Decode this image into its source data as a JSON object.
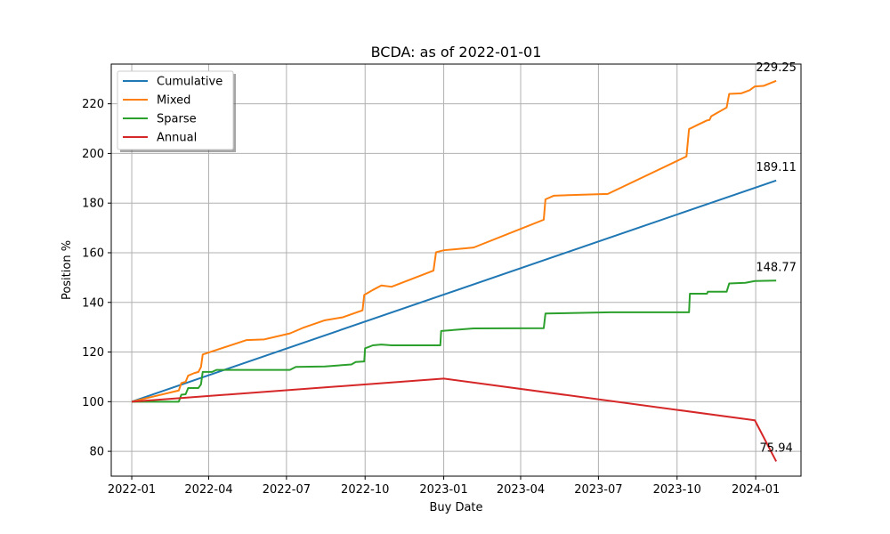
{
  "chart_data": {
    "type": "line",
    "title": "BCDA: as of 2022-01-01",
    "xlabel": "Buy Date",
    "ylabel": "Position %",
    "x_ticks": [
      "2022-01",
      "2022-04",
      "2022-07",
      "2022-10",
      "2023-01",
      "2023-04",
      "2023-07",
      "2023-10",
      "2024-01"
    ],
    "y_ticks": [
      80,
      100,
      120,
      140,
      160,
      180,
      200,
      220
    ],
    "xlim": [
      "2021-12-08",
      "2024-02-23"
    ],
    "ylim": [
      70,
      236
    ],
    "grid": true,
    "legend": "top-left",
    "series": [
      {
        "name": "Cumulative",
        "color": "#1f77b4",
        "points": [
          [
            "2022-01-01",
            100.0
          ],
          [
            "2024-01-25",
            189.11
          ]
        ],
        "end_label": "189.11"
      },
      {
        "name": "Mixed",
        "color": "#ff7f0e",
        "points": [
          [
            "2022-01-01",
            100.0
          ],
          [
            "2022-02-25",
            104.5
          ],
          [
            "2022-02-28",
            107.5
          ],
          [
            "2022-03-05",
            108.0
          ],
          [
            "2022-03-08",
            110.5
          ],
          [
            "2022-03-15",
            111.5
          ],
          [
            "2022-03-20",
            112.0
          ],
          [
            "2022-03-23",
            114.0
          ],
          [
            "2022-03-25",
            119.0
          ],
          [
            "2022-05-15",
            124.8
          ],
          [
            "2022-06-05",
            125.1
          ],
          [
            "2022-07-05",
            127.5
          ],
          [
            "2022-07-20",
            129.7
          ],
          [
            "2022-08-15",
            132.8
          ],
          [
            "2022-09-05",
            134.0
          ],
          [
            "2022-09-28",
            136.8
          ],
          [
            "2022-09-30",
            143.0
          ],
          [
            "2022-10-05",
            144.0
          ],
          [
            "2022-10-10",
            145.0
          ],
          [
            "2022-10-20",
            146.8
          ],
          [
            "2022-11-01",
            146.3
          ],
          [
            "2022-12-20",
            152.8
          ],
          [
            "2022-12-23",
            160.2
          ],
          [
            "2023-01-01",
            161.0
          ],
          [
            "2023-02-05",
            162.1
          ],
          [
            "2023-04-28",
            173.3
          ],
          [
            "2023-04-30",
            181.5
          ],
          [
            "2023-05-10",
            183.0
          ],
          [
            "2023-07-12",
            183.7
          ],
          [
            "2023-10-12",
            198.8
          ],
          [
            "2023-10-15",
            209.8
          ],
          [
            "2023-10-25",
            211.5
          ],
          [
            "2023-11-05",
            213.3
          ],
          [
            "2023-11-08",
            213.5
          ],
          [
            "2023-11-10",
            215.0
          ],
          [
            "2023-11-28",
            218.5
          ],
          [
            "2023-12-01",
            224.0
          ],
          [
            "2023-12-15",
            224.2
          ],
          [
            "2023-12-25",
            225.5
          ],
          [
            "2023-12-31",
            227.0
          ],
          [
            "2024-01-10",
            227.2
          ],
          [
            "2024-01-25",
            229.25
          ]
        ],
        "end_label": "229.25"
      },
      {
        "name": "Sparse",
        "color": "#2ca02c",
        "points": [
          [
            "2022-01-01",
            100.0
          ],
          [
            "2022-02-25",
            100.0
          ],
          [
            "2022-02-28",
            102.8
          ],
          [
            "2022-03-05",
            103.0
          ],
          [
            "2022-03-08",
            105.5
          ],
          [
            "2022-03-20",
            105.5
          ],
          [
            "2022-03-23",
            107.0
          ],
          [
            "2022-03-25",
            112.0
          ],
          [
            "2022-04-05",
            112.0
          ],
          [
            "2022-04-10",
            112.8
          ],
          [
            "2022-07-05",
            112.8
          ],
          [
            "2022-07-12",
            114.0
          ],
          [
            "2022-08-15",
            114.2
          ],
          [
            "2022-09-15",
            115.0
          ],
          [
            "2022-09-20",
            116.0
          ],
          [
            "2022-09-30",
            116.2
          ],
          [
            "2022-10-01",
            121.5
          ],
          [
            "2022-10-05",
            122.0
          ],
          [
            "2022-10-10",
            122.7
          ],
          [
            "2022-10-20",
            123.0
          ],
          [
            "2022-11-01",
            122.7
          ],
          [
            "2022-12-28",
            122.7
          ],
          [
            "2022-12-29",
            128.5
          ],
          [
            "2023-02-05",
            129.5
          ],
          [
            "2023-04-28",
            129.6
          ],
          [
            "2023-04-30",
            135.5
          ],
          [
            "2023-07-15",
            136.0
          ],
          [
            "2023-10-15",
            136.0
          ],
          [
            "2023-10-16",
            143.5
          ],
          [
            "2023-11-05",
            143.5
          ],
          [
            "2023-11-06",
            144.3
          ],
          [
            "2023-11-28",
            144.3
          ],
          [
            "2023-12-01",
            147.6
          ],
          [
            "2023-12-20",
            147.9
          ],
          [
            "2023-12-31",
            148.6
          ],
          [
            "2024-01-25",
            148.77
          ]
        ],
        "end_label": "148.77"
      },
      {
        "name": "Annual",
        "color": "#d62728",
        "points": [
          [
            "2022-01-01",
            100.0
          ],
          [
            "2023-01-01",
            109.3
          ],
          [
            "2023-12-31",
            92.5
          ],
          [
            "2024-01-25",
            75.94
          ]
        ],
        "end_label": "75.94"
      }
    ]
  }
}
